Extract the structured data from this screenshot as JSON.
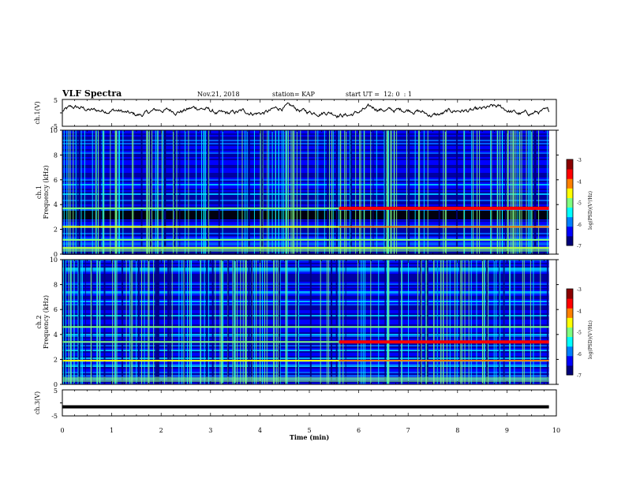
{
  "header": {
    "title": "VLF Spectra",
    "date": "Nov.21, 2018",
    "station": "station= KAP",
    "start": "start UT =  12: 0  : 1"
  },
  "chart_data": [
    {
      "type": "line",
      "ylabel": "ch.1(V)",
      "ylim": [
        -5,
        5
      ],
      "y_ticks": [
        "5",
        "-5"
      ],
      "color": "#000000",
      "note": "noisy waveform fluctuating between about -2 and 3 V over 0–9.85 min"
    },
    {
      "type": "heatmap",
      "ylabel_channel": "ch.1",
      "ylabel": "Frequency (kHz)",
      "ylim": [
        0,
        10
      ],
      "y_ticks": [
        "0",
        "2",
        "4",
        "6",
        "8",
        "10"
      ],
      "xlim": [
        0,
        9.85
      ],
      "features": {
        "strong_bands_khz": [
          3.7,
          2.2,
          1.15,
          0.5
        ],
        "transition_min": 5.6,
        "dark_gap_khz": [
          2.8,
          3.5
        ]
      },
      "colorbar": {
        "label": "log(PSD)(V²/Hz)",
        "ticks": [
          "-3",
          "-4",
          "-5",
          "-6",
          "-7"
        ],
        "range": [
          -7,
          -3
        ]
      }
    },
    {
      "type": "heatmap",
      "ylabel_channel": "ch.2",
      "ylabel": "Frequency (kHz)",
      "ylim": [
        0,
        10
      ],
      "y_ticks": [
        "0",
        "2",
        "4",
        "6",
        "8",
        "10"
      ],
      "xlim": [
        0,
        9.85
      ],
      "features": {
        "strong_bands_khz": [
          3.4,
          1.9,
          4.6
        ],
        "transition_min": 5.6
      },
      "colorbar": {
        "label": "log(PSD)(V²/Hz)",
        "ticks": [
          "-3",
          "-4",
          "-5",
          "-6",
          "-7"
        ],
        "range": [
          -7,
          -3
        ]
      }
    },
    {
      "type": "line",
      "ylabel": "ch.3(V)",
      "ylim": [
        -5,
        5
      ],
      "y_ticks": [
        "5",
        "-5"
      ],
      "constant_value": -1.5,
      "color": "#000000"
    }
  ],
  "x_axis": {
    "label": "Time (min)",
    "ticks": [
      "0",
      "1",
      "2",
      "3",
      "4",
      "5",
      "6",
      "7",
      "8",
      "9",
      "10"
    ],
    "range": [
      0,
      10
    ]
  },
  "colors": {
    "colormap": [
      "#00007a",
      "#0000ff",
      "#0080ff",
      "#00ffff",
      "#80ff80",
      "#ffff00",
      "#ff8000",
      "#ff0000",
      "#8b0000"
    ],
    "line": "#000000"
  }
}
